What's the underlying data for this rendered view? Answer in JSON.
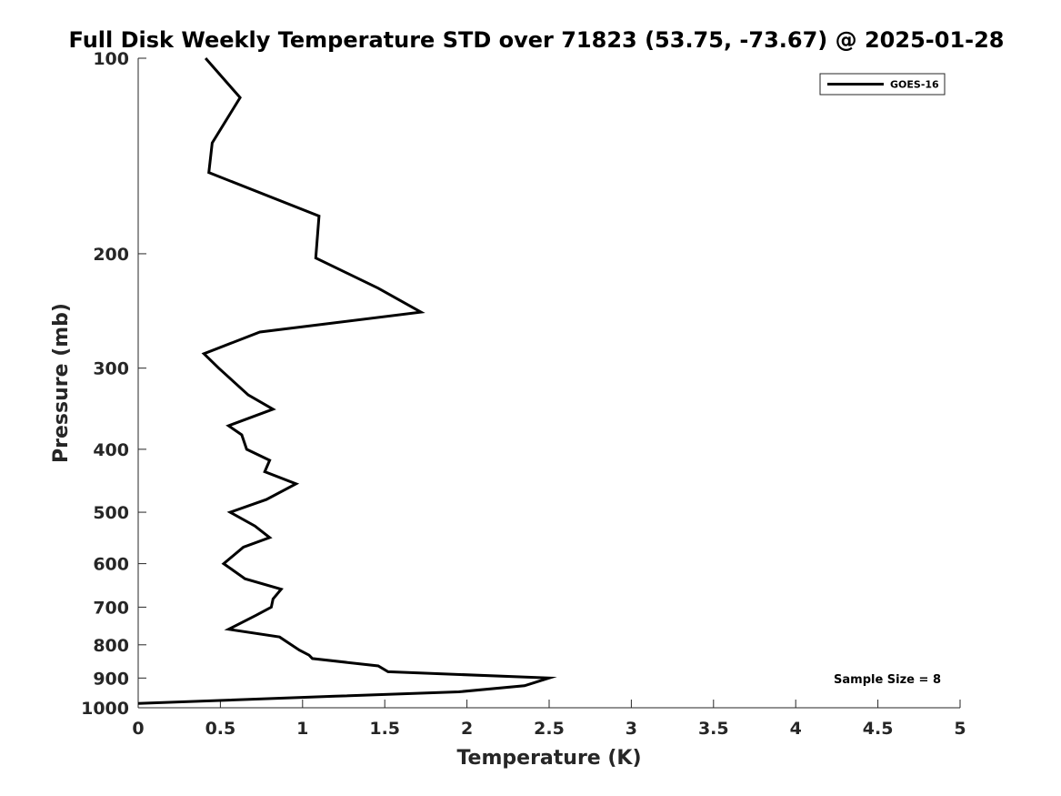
{
  "chart_data": {
    "type": "line",
    "title": "Full Disk Weekly Temperature STD over 71823 (53.75, -73.67) @ 2025-01-28",
    "xlabel": "Temperature (K)",
    "ylabel": "Pressure (mb)",
    "xlim": [
      0,
      5
    ],
    "ylim": [
      100,
      1000
    ],
    "yscale": "log",
    "y_reversed": true,
    "grid": false,
    "x_ticks": [
      0,
      0.5,
      1,
      1.5,
      2,
      2.5,
      3,
      3.5,
      4,
      4.5,
      5
    ],
    "x_tick_labels": [
      "0",
      "0.5",
      "1",
      "1.5",
      "2",
      "2.5",
      "3",
      "3.5",
      "4",
      "4.5",
      "5"
    ],
    "y_ticks": [
      100,
      200,
      300,
      400,
      500,
      600,
      700,
      800,
      900,
      1000
    ],
    "y_tick_labels": [
      "100",
      "200",
      "300",
      "400",
      "500",
      "600",
      "700",
      "800",
      "900",
      "1000"
    ],
    "legend": {
      "position": "top-right",
      "entries": [
        "GOES-16"
      ]
    },
    "series": [
      {
        "name": "GOES-16",
        "color": "#000000",
        "x": [
          0.41,
          0.62,
          0.45,
          0.43,
          1.1,
          1.08,
          1.46,
          1.72,
          0.74,
          0.4,
          0.49,
          0.67,
          0.82,
          0.55,
          0.63,
          0.66,
          0.8,
          0.77,
          0.96,
          0.78,
          0.56,
          0.71,
          0.8,
          0.64,
          0.52,
          0.65,
          0.87,
          0.82,
          0.81,
          0.72,
          0.55,
          0.86,
          0.98,
          1.04,
          1.06,
          1.46,
          1.52,
          2.5,
          2.35,
          1.95,
          1.2,
          0.0
        ],
        "y": [
          100,
          115,
          135,
          150,
          175,
          203,
          226,
          246,
          264,
          285,
          300,
          330,
          347,
          368,
          380,
          400,
          416,
          433,
          452,
          478,
          500,
          525,
          547,
          566,
          600,
          633,
          657,
          680,
          700,
          720,
          757,
          778,
          815,
          830,
          840,
          862,
          880,
          900,
          925,
          945,
          960,
          985
        ]
      }
    ],
    "annotations": [
      {
        "text": "Sample Size = 8",
        "position": "bottom-right"
      }
    ]
  }
}
